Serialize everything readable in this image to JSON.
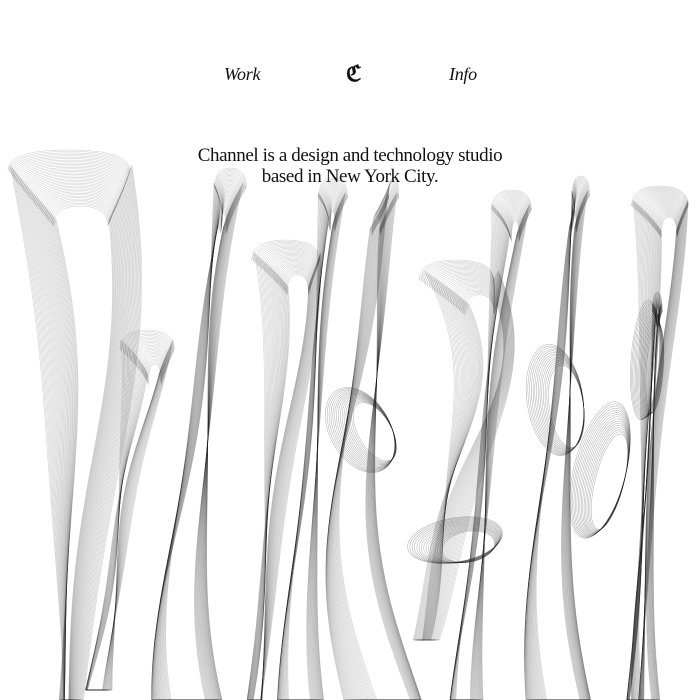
{
  "nav": {
    "work_label": "Work",
    "logo_glyph": "ℭ",
    "info_label": "Info"
  },
  "hero": {
    "line1": "Channel is a design and technology studio",
    "line2": "based in New York City."
  },
  "colors": {
    "background": "#ffffff",
    "text": "#111111",
    "line": "#1a1a1a"
  }
}
